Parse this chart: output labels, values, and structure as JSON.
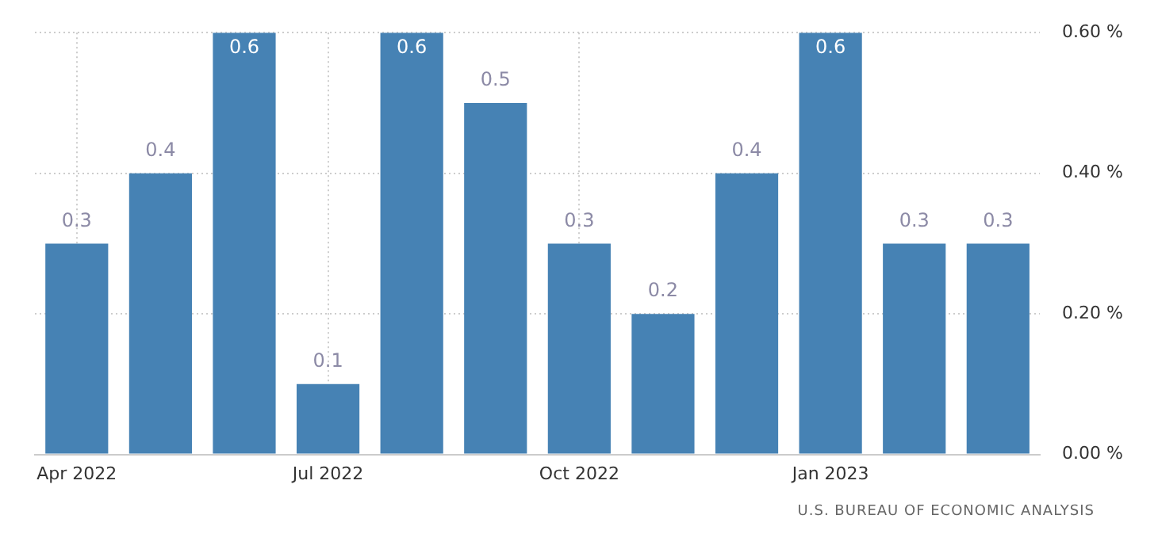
{
  "chart_data": {
    "type": "bar",
    "categories": [
      "Apr 2022",
      null,
      null,
      "Jul 2022",
      null,
      null,
      "Oct 2022",
      null,
      null,
      "Jan 2023",
      null,
      null
    ],
    "values": [
      0.3,
      0.4,
      0.6,
      0.1,
      0.6,
      0.5,
      0.3,
      0.2,
      0.4,
      0.6,
      0.3,
      0.3
    ],
    "color": "#4682b4",
    "ylim": [
      0,
      0.6
    ],
    "yticks": [
      {
        "value": 0,
        "label": "0.00 %"
      },
      {
        "value": 0.2,
        "label": "0.20 %"
      },
      {
        "value": 0.4,
        "label": "0.40 %"
      },
      {
        "value": 0.6,
        "label": "0.60 %"
      }
    ],
    "grid": true,
    "legend": false,
    "data_labels": true,
    "annotations": [
      "U.S. BUREAU OF ECONOMIC ANALYSIS"
    ]
  }
}
